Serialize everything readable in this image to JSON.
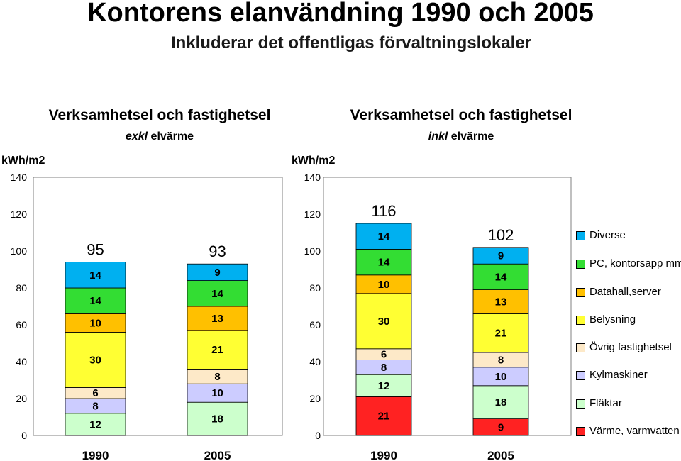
{
  "title": "Kontorens elanvändning 1990 och 2005",
  "subtitle": "Inkluderar det offentligas förvaltningslokaler",
  "chart_data": [
    {
      "type": "bar",
      "stacked": true,
      "title": "Verksamhetsel och fastighetsel",
      "subtitle_emph": "exkl",
      "subtitle_rest": " elvärme",
      "ylabel": "kWh/m2",
      "ylim": [
        0,
        140
      ],
      "yticks": [
        "0",
        "20",
        "40",
        "60",
        "80",
        "100",
        "120",
        "140"
      ],
      "grid": false,
      "categories": [
        "1990",
        "2005"
      ],
      "totals": [
        "95",
        "93"
      ],
      "series": [
        {
          "name": "Värme, varmvatten",
          "values": [
            0,
            0
          ]
        },
        {
          "name": "Fläktar",
          "values": [
            12,
            18
          ]
        },
        {
          "name": "Kylmaskiner",
          "values": [
            8,
            10
          ]
        },
        {
          "name": "Övrig fastighetsel",
          "values": [
            6,
            8
          ]
        },
        {
          "name": "Belysning",
          "values": [
            30,
            21
          ]
        },
        {
          "name": "Datahall,server",
          "values": [
            10,
            13
          ]
        },
        {
          "name": "PC, kontorsapp mm",
          "values": [
            14,
            14
          ]
        },
        {
          "name": "Diverse",
          "values": [
            14,
            9
          ]
        }
      ]
    },
    {
      "type": "bar",
      "stacked": true,
      "title": "Verksamhetsel och fastighetsel",
      "subtitle_emph": "inkl",
      "subtitle_rest": " elvärme",
      "ylabel": "kWh/m2",
      "ylim": [
        0,
        140
      ],
      "yticks": [
        "0",
        "20",
        "40",
        "60",
        "80",
        "100",
        "120",
        "140"
      ],
      "grid": false,
      "categories": [
        "1990",
        "2005"
      ],
      "totals": [
        "116",
        "102"
      ],
      "series": [
        {
          "name": "Värme, varmvatten",
          "values": [
            21,
            9
          ]
        },
        {
          "name": "Fläktar",
          "values": [
            12,
            18
          ]
        },
        {
          "name": "Kylmaskiner",
          "values": [
            8,
            10
          ]
        },
        {
          "name": "Övrig fastighetsel",
          "values": [
            6,
            8
          ]
        },
        {
          "name": "Belysning",
          "values": [
            30,
            21
          ]
        },
        {
          "name": "Datahall,server",
          "values": [
            10,
            13
          ]
        },
        {
          "name": "PC, kontorsapp mm",
          "values": [
            14,
            14
          ]
        },
        {
          "name": "Diverse",
          "values": [
            14,
            9
          ]
        }
      ]
    }
  ],
  "legend": {
    "position": "right",
    "items": [
      {
        "label": "Diverse",
        "color": "#00b0f0"
      },
      {
        "label": "PC, kontorsapp mm",
        "color": "#33dd33"
      },
      {
        "label": "Datahall,server",
        "color": "#ffc000"
      },
      {
        "label": "Belysning",
        "color": "#ffff33"
      },
      {
        "label": "Övrig fastighetsel",
        "color": "#fde9c8"
      },
      {
        "label": "Kylmaskiner",
        "color": "#ccccff"
      },
      {
        "label": "Fläktar",
        "color": "#ccffcc"
      },
      {
        "label": "Värme, varmvatten",
        "color": "#ff2222"
      }
    ]
  }
}
